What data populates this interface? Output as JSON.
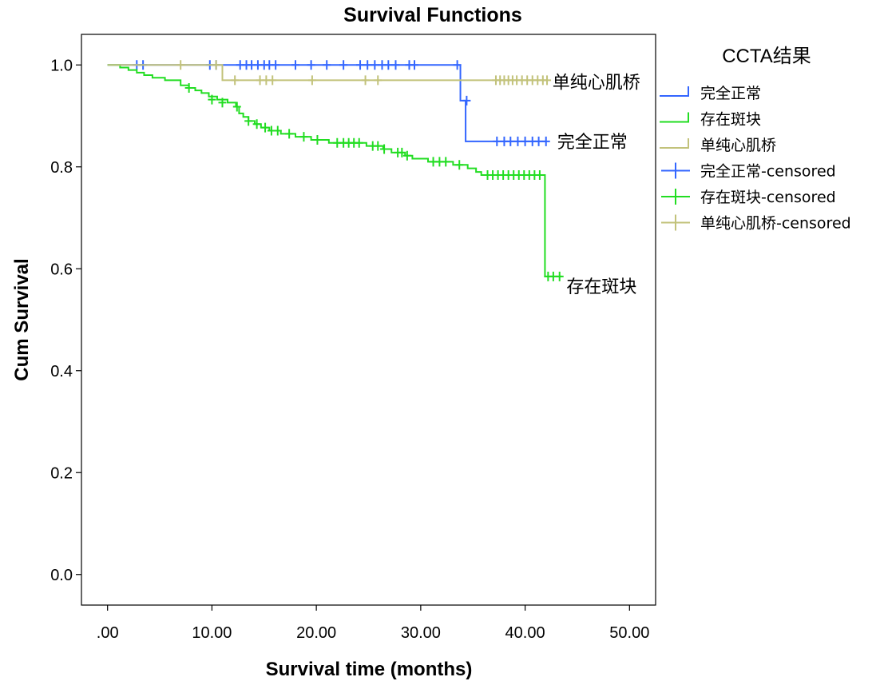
{
  "chart_data": {
    "type": "line",
    "title": "Survival Functions",
    "xlabel": "Survival time (months)",
    "ylabel": "Cum Survival",
    "xlim": [
      -2.5,
      52.5
    ],
    "ylim": [
      -0.06,
      1.06
    ],
    "xticks": [
      0,
      10,
      20,
      30,
      40,
      50
    ],
    "xtick_labels": [
      ".00",
      "10.00",
      "20.00",
      "30.00",
      "40.00",
      "50.00"
    ],
    "yticks": [
      0.0,
      0.2,
      0.4,
      0.6,
      0.8,
      1.0
    ],
    "ytick_labels": [
      "0.0",
      "0.2",
      "0.4",
      "0.6",
      "0.8",
      "1.0"
    ],
    "grid": false,
    "legend": {
      "title": "CCTA结果",
      "placement": "right",
      "entries": [
        {
          "label": "完全正常",
          "kind": "line",
          "color": "#3366ff"
        },
        {
          "label": "存在斑块",
          "kind": "line",
          "color": "#22dd22"
        },
        {
          "label": "单纯心肌桥",
          "kind": "line",
          "color": "#c2c27a"
        },
        {
          "label": "完全正常-censored",
          "kind": "censor",
          "color": "#3366ff"
        },
        {
          "label": "存在斑块-censored",
          "kind": "censor",
          "color": "#22dd22"
        },
        {
          "label": "单纯心肌桥-censored",
          "kind": "censor",
          "color": "#c2c27a"
        }
      ]
    },
    "series": [
      {
        "name": "完全正常",
        "color": "#3366ff",
        "steps": [
          [
            0,
            1.0
          ],
          [
            33.8,
            0.93
          ],
          [
            34.3,
            0.85
          ],
          [
            42.0,
            0.85
          ]
        ],
        "censored": [
          [
            2.8,
            1.0
          ],
          [
            3.4,
            1.0
          ],
          [
            9.8,
            1.0
          ],
          [
            10.4,
            1.0
          ],
          [
            12.7,
            1.0
          ],
          [
            13.3,
            1.0
          ],
          [
            13.8,
            1.0
          ],
          [
            14.4,
            1.0
          ],
          [
            15.0,
            1.0
          ],
          [
            15.5,
            1.0
          ],
          [
            16.1,
            1.0
          ],
          [
            18.0,
            1.0
          ],
          [
            19.5,
            1.0
          ],
          [
            21.0,
            1.0
          ],
          [
            22.6,
            1.0
          ],
          [
            24.2,
            1.0
          ],
          [
            24.9,
            1.0
          ],
          [
            25.6,
            1.0
          ],
          [
            26.3,
            1.0
          ],
          [
            26.9,
            1.0
          ],
          [
            27.6,
            1.0
          ],
          [
            28.9,
            1.0
          ],
          [
            29.4,
            1.0
          ],
          [
            33.5,
            1.0
          ],
          [
            34.4,
            0.93
          ],
          [
            37.3,
            0.85
          ],
          [
            38.0,
            0.85
          ],
          [
            38.6,
            0.85
          ],
          [
            39.3,
            0.85
          ],
          [
            40.0,
            0.85
          ],
          [
            40.7,
            0.85
          ],
          [
            41.3,
            0.85
          ],
          [
            42.0,
            0.85
          ]
        ]
      },
      {
        "name": "存在斑块",
        "color": "#22dd22",
        "steps": [
          [
            0,
            1.0
          ],
          [
            1.2,
            0.995
          ],
          [
            2.0,
            0.99
          ],
          [
            2.8,
            0.985
          ],
          [
            3.5,
            0.98
          ],
          [
            4.3,
            0.975
          ],
          [
            5.5,
            0.97
          ],
          [
            7.0,
            0.96
          ],
          [
            7.8,
            0.955
          ],
          [
            8.4,
            0.95
          ],
          [
            9.0,
            0.945
          ],
          [
            9.7,
            0.938
          ],
          [
            10.5,
            0.932
          ],
          [
            11.5,
            0.926
          ],
          [
            12.3,
            0.918
          ],
          [
            12.6,
            0.905
          ],
          [
            13.0,
            0.898
          ],
          [
            13.5,
            0.89
          ],
          [
            14.1,
            0.884
          ],
          [
            14.7,
            0.877
          ],
          [
            15.5,
            0.871
          ],
          [
            16.6,
            0.865
          ],
          [
            18.0,
            0.859
          ],
          [
            19.5,
            0.853
          ],
          [
            21.2,
            0.847
          ],
          [
            24.8,
            0.841
          ],
          [
            26.4,
            0.835
          ],
          [
            27.2,
            0.828
          ],
          [
            28.5,
            0.822
          ],
          [
            29.2,
            0.816
          ],
          [
            30.7,
            0.81
          ],
          [
            33.1,
            0.804
          ],
          [
            34.5,
            0.797
          ],
          [
            35.3,
            0.79
          ],
          [
            35.8,
            0.784
          ],
          [
            41.9,
            0.585
          ],
          [
            43.5,
            0.585
          ]
        ],
        "censored": [
          [
            7.8,
            0.955
          ],
          [
            10.0,
            0.932
          ],
          [
            11.0,
            0.926
          ],
          [
            12.4,
            0.918
          ],
          [
            13.5,
            0.89
          ],
          [
            14.3,
            0.884
          ],
          [
            15.1,
            0.877
          ],
          [
            15.7,
            0.871
          ],
          [
            16.3,
            0.871
          ],
          [
            17.4,
            0.865
          ],
          [
            18.8,
            0.859
          ],
          [
            20.1,
            0.853
          ],
          [
            22.0,
            0.847
          ],
          [
            22.6,
            0.847
          ],
          [
            23.1,
            0.847
          ],
          [
            23.6,
            0.847
          ],
          [
            24.1,
            0.847
          ],
          [
            25.4,
            0.841
          ],
          [
            25.9,
            0.841
          ],
          [
            26.5,
            0.835
          ],
          [
            27.8,
            0.828
          ],
          [
            28.2,
            0.828
          ],
          [
            28.7,
            0.822
          ],
          [
            31.2,
            0.81
          ],
          [
            31.8,
            0.81
          ],
          [
            32.4,
            0.81
          ],
          [
            33.7,
            0.804
          ],
          [
            36.4,
            0.784
          ],
          [
            36.9,
            0.784
          ],
          [
            37.4,
            0.784
          ],
          [
            37.9,
            0.784
          ],
          [
            38.4,
            0.784
          ],
          [
            38.9,
            0.784
          ],
          [
            39.4,
            0.784
          ],
          [
            39.9,
            0.784
          ],
          [
            40.4,
            0.784
          ],
          [
            40.9,
            0.784
          ],
          [
            41.4,
            0.784
          ],
          [
            42.2,
            0.585
          ],
          [
            42.7,
            0.585
          ],
          [
            43.3,
            0.585
          ]
        ]
      },
      {
        "name": "单纯心肌桥",
        "color": "#c2c27a",
        "steps": [
          [
            0,
            1.0
          ],
          [
            10.7,
            1.0
          ],
          [
            11.0,
            0.97
          ],
          [
            42.0,
            0.97
          ]
        ],
        "censored": [
          [
            7.0,
            1.0
          ],
          [
            10.4,
            1.0
          ],
          [
            12.2,
            0.97
          ],
          [
            14.6,
            0.97
          ],
          [
            15.2,
            0.97
          ],
          [
            15.8,
            0.97
          ],
          [
            19.6,
            0.97
          ],
          [
            24.7,
            0.97
          ],
          [
            25.9,
            0.97
          ],
          [
            37.2,
            0.97
          ],
          [
            37.6,
            0.97
          ],
          [
            38.0,
            0.97
          ],
          [
            38.4,
            0.97
          ],
          [
            38.8,
            0.97
          ],
          [
            39.2,
            0.97
          ],
          [
            39.7,
            0.97
          ],
          [
            40.2,
            0.97
          ],
          [
            40.7,
            0.97
          ],
          [
            41.2,
            0.97
          ],
          [
            41.7,
            0.97
          ],
          [
            42.1,
            0.97
          ]
        ]
      }
    ],
    "end_labels": [
      {
        "text": "单纯心肌桥",
        "series": 2
      },
      {
        "text": "完全正常",
        "series": 0
      },
      {
        "text": "存在斑块",
        "series": 1
      }
    ]
  }
}
